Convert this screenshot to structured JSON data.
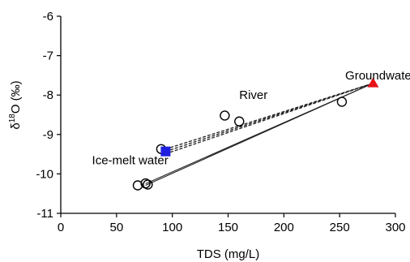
{
  "chart_data": {
    "type": "scatter",
    "xlabel": "TDS (mg/L)",
    "ylabel_prefix": "δ",
    "ylabel_sup": "18",
    "ylabel_suffix": "O (‰)",
    "xlim": [
      0,
      300
    ],
    "ylim": [
      -11,
      -6
    ],
    "xticks": [
      0,
      50,
      100,
      150,
      200,
      250,
      300
    ],
    "yticks": [
      -11,
      -10,
      -9,
      -8,
      -7,
      -6
    ],
    "grid": false,
    "samples": [
      {
        "x": 69,
        "y": -10.29
      },
      {
        "x": 76,
        "y": -10.24
      },
      {
        "x": 78,
        "y": -10.27
      },
      {
        "x": 90,
        "y": -9.37
      },
      {
        "x": 147,
        "y": -8.52
      },
      {
        "x": 160,
        "y": -8.67
      },
      {
        "x": 252,
        "y": -8.17
      }
    ],
    "endmembers": [
      {
        "label": "Ice-melt water",
        "x": 94,
        "y": -9.43,
        "marker": "square",
        "color": "#1f1fe0"
      },
      {
        "label": "Groundwater",
        "x": 280,
        "y": -7.7,
        "marker": "triangle",
        "color": "#e8131a"
      }
    ],
    "annotations": [
      {
        "text": "River",
        "x": 160,
        "y": -8.1
      },
      {
        "text": "Ice-melt water",
        "x": 28,
        "y": -9.75
      },
      {
        "text": "Groundwater",
        "x": 255,
        "y": -7.6
      }
    ],
    "mixing_lines": [
      {
        "style": "dashed",
        "from": [
          94,
          -9.37
        ],
        "to": [
          280,
          -7.7
        ]
      },
      {
        "style": "dashed",
        "from": [
          94,
          -9.43
        ],
        "to": [
          280,
          -7.7
        ]
      },
      {
        "style": "dashed",
        "from": [
          94,
          -9.49
        ],
        "to": [
          280,
          -7.7
        ]
      },
      {
        "style": "solid",
        "from": [
          76,
          -10.29
        ],
        "to": [
          280,
          -7.7
        ]
      },
      {
        "style": "solid",
        "from": [
          76,
          -10.25
        ],
        "to": [
          280,
          -7.7
        ]
      }
    ]
  }
}
